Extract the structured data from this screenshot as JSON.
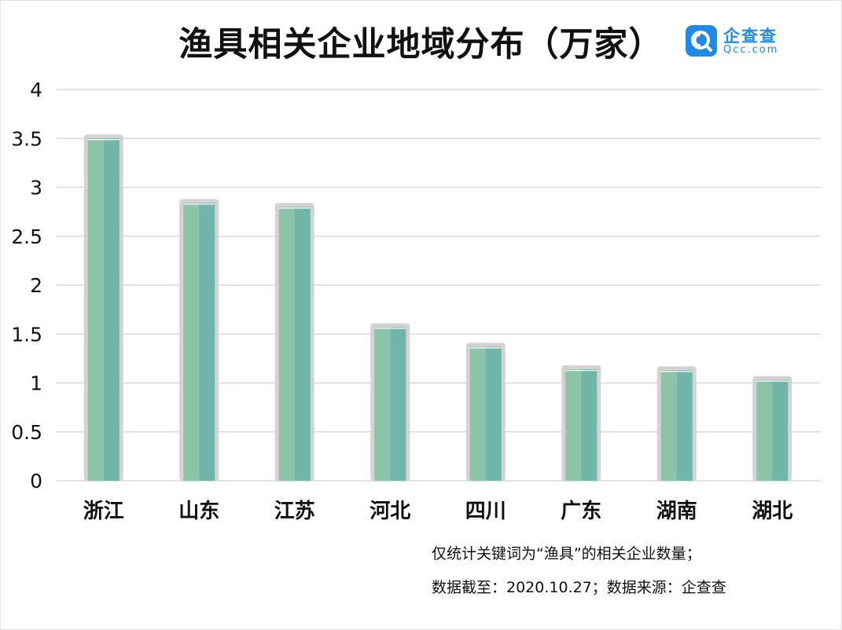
{
  "header": {
    "title": "渔具相关企业地域分布（万家）"
  },
  "logo": {
    "name": "企查查",
    "domain": "Qcc.com",
    "color": "#1f8ae8",
    "icon": "qcc-magnifier-icon"
  },
  "notes": {
    "line1": "仅统计关键词为“渔具”的相关企业数量；",
    "line2": "数据截至：2020.10.27；数据来源：企查查"
  },
  "colors": {
    "bar_left": "#8cc4aa",
    "bar_right": "#6fb6a8",
    "bar_border": "#d3d3d3",
    "grid": "#d9d9d9"
  },
  "chart_data": {
    "type": "bar",
    "title": "渔具相关企业地域分布（万家）",
    "categories": [
      "浙江",
      "山东",
      "江苏",
      "河北",
      "四川",
      "广东",
      "湖南",
      "湖北"
    ],
    "values": [
      3.5,
      2.84,
      2.8,
      1.57,
      1.37,
      1.14,
      1.13,
      1.03
    ],
    "ylim": [
      0,
      4
    ],
    "yticks": [
      "0",
      "0.5",
      "1",
      "1.5",
      "2",
      "2.5",
      "3",
      "3.5",
      "4"
    ],
    "ytick_values": [
      0,
      0.5,
      1,
      1.5,
      2,
      2.5,
      3,
      3.5,
      4
    ],
    "grid": true,
    "legend": "none"
  }
}
